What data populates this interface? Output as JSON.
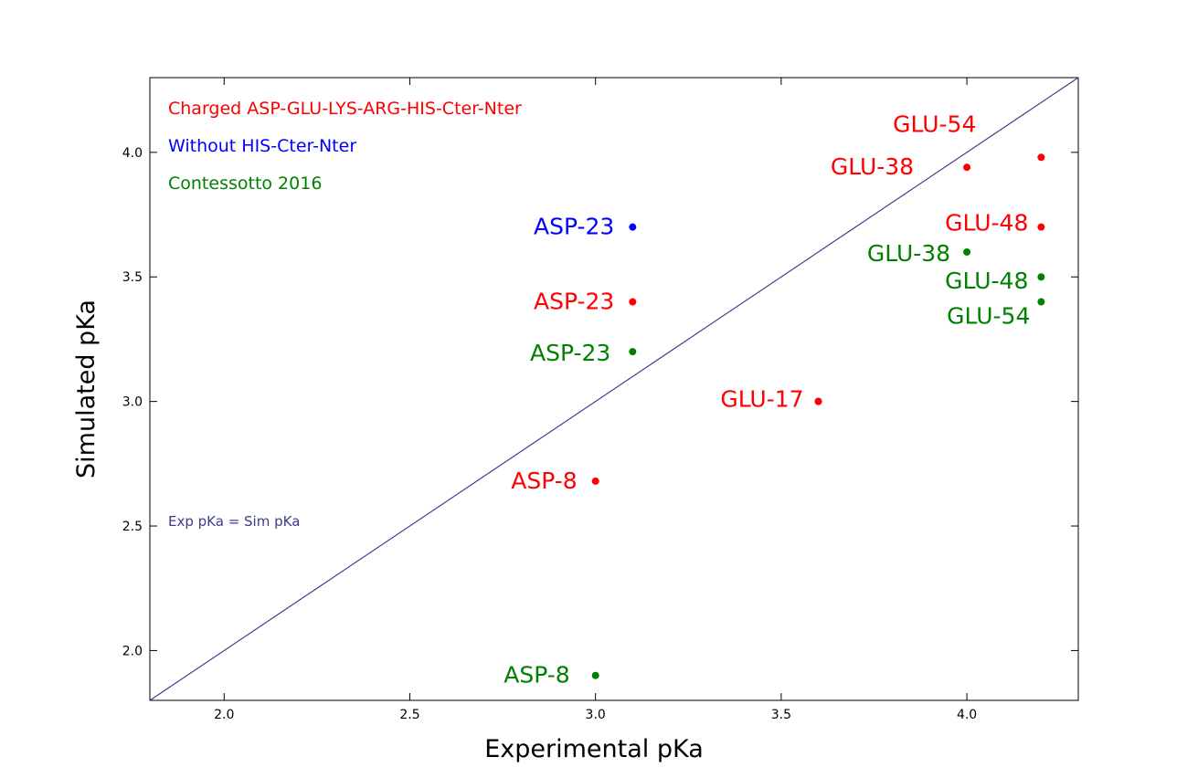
{
  "chart_data": {
    "type": "scatter",
    "xlabel": "Experimental pKa",
    "ylabel": "Simulated pKa",
    "xlim": [
      1.8,
      4.3
    ],
    "ylim": [
      1.8,
      4.3
    ],
    "xticks": [
      2.0,
      2.5,
      3.0,
      3.5,
      4.0
    ],
    "yticks": [
      2.0,
      2.5,
      3.0,
      3.5,
      4.0
    ],
    "xtick_labels": [
      "2.0",
      "2.5",
      "3.0",
      "3.5",
      "4.0"
    ],
    "ytick_labels": [
      "2.0",
      "2.5",
      "3.0",
      "3.5",
      "4.0"
    ],
    "grid": false,
    "legend_placement": "top-left",
    "reference_line": {
      "label": "Exp pKa = Sim pKa",
      "color": "#3c3c8c",
      "from": [
        1.8,
        1.8
      ],
      "to": [
        4.3,
        4.3
      ]
    },
    "series": [
      {
        "name": "Charged ASP-GLU-LYS-ARG-HIS-Cter-Nter",
        "color": "#ff0000",
        "points": [
          {
            "x": 3.0,
            "y": 2.68,
            "label": "ASP-8"
          },
          {
            "x": 3.1,
            "y": 3.4,
            "label": "ASP-23"
          },
          {
            "x": 3.6,
            "y": 3.0,
            "label": "GLU-17"
          },
          {
            "x": 4.0,
            "y": 3.94,
            "label": "GLU-38"
          },
          {
            "x": 4.2,
            "y": 3.7,
            "label": "GLU-48"
          },
          {
            "x": 4.2,
            "y": 3.98,
            "label": "GLU-54"
          }
        ]
      },
      {
        "name": "Without HIS-Cter-Nter",
        "color": "#0000ff",
        "points": [
          {
            "x": 3.1,
            "y": 3.7,
            "label": "ASP-23"
          }
        ]
      },
      {
        "name": "Contessotto 2016",
        "color": "#008000",
        "points": [
          {
            "x": 3.0,
            "y": 1.9,
            "label": "ASP-8"
          },
          {
            "x": 3.1,
            "y": 3.2,
            "label": "ASP-23"
          },
          {
            "x": 3.6,
            "y": 3.0,
            "label": ""
          },
          {
            "x": 4.0,
            "y": 3.6,
            "label": "GLU-38"
          },
          {
            "x": 4.2,
            "y": 3.5,
            "label": "GLU-48"
          },
          {
            "x": 4.2,
            "y": 3.4,
            "label": "GLU-54"
          }
        ]
      }
    ]
  }
}
